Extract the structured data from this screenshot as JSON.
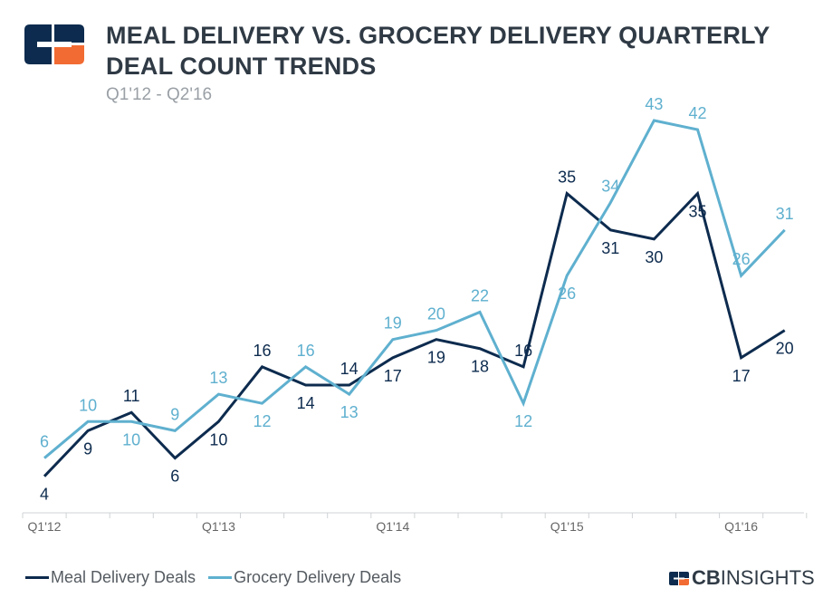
{
  "header": {
    "title": "MEAL DELIVERY VS. GROCERY DELIVERY QUARTERLY DEAL COUNT TRENDS",
    "subtitle": "Q1'12 - Q2'16"
  },
  "brand": {
    "logo_icon": "cb-insights-logo-icon",
    "cb": "CB",
    "insights": "INSIGHTS"
  },
  "colors": {
    "meal": "#0d2b4e",
    "grocery": "#5fb0cf",
    "axis": "#cfd3d6",
    "tick_text": "#666666",
    "brand_orange": "#f26b32"
  },
  "legend": {
    "meal_label": "Meal Delivery Deals",
    "grocery_label": "Grocery Delivery Deals"
  },
  "chart_data": {
    "type": "line",
    "x": [
      "Q1'12",
      "Q2'12",
      "Q3'12",
      "Q4'12",
      "Q1'13",
      "Q2'13",
      "Q3'13",
      "Q4'13",
      "Q1'14",
      "Q2'14",
      "Q3'14",
      "Q4'14",
      "Q1'15",
      "Q2'15",
      "Q3'15",
      "Q4'15",
      "Q1'16",
      "Q2'16"
    ],
    "x_tick_labels": [
      "Q1'12",
      "Q1'13",
      "Q1'14",
      "Q1'15",
      "Q1'16"
    ],
    "series": [
      {
        "name": "Meal Delivery Deals",
        "color": "#0d2b4e",
        "values": [
          4,
          9,
          11,
          6,
          10,
          16,
          14,
          14,
          17,
          19,
          18,
          16,
          35,
          31,
          30,
          35,
          17,
          20
        ]
      },
      {
        "name": "Grocery Delivery Deals",
        "color": "#5fb0cf",
        "values": [
          6,
          10,
          10,
          9,
          13,
          12,
          16,
          13,
          19,
          20,
          22,
          12,
          26,
          34,
          43,
          42,
          26,
          31
        ]
      }
    ],
    "ylim": [
      0,
      47
    ],
    "grid": false,
    "legend_position": "bottom-left",
    "title": "MEAL DELIVERY VS. GROCERY DELIVERY QUARTERLY DEAL COUNT TRENDS",
    "subtitle": "Q1'12 - Q2'16",
    "xlabel": "",
    "ylabel": ""
  }
}
